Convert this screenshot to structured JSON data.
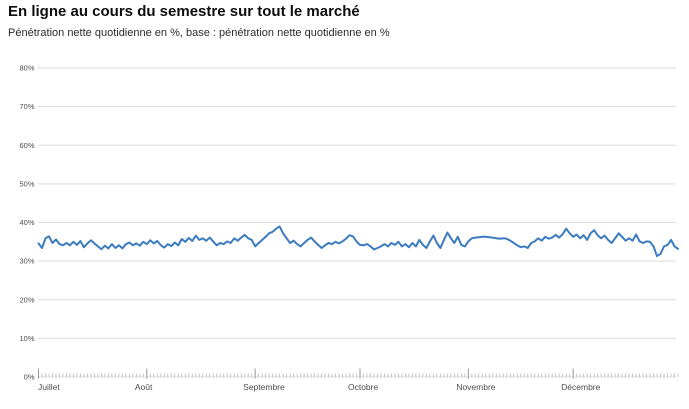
{
  "header": {
    "title": "En ligne au cours du semestre sur tout le marché",
    "subtitle": "Pénétration nette quotidienne en %, base : pénétration nette quotidienne en %"
  },
  "colors": {
    "background": "#ffffff",
    "line": "#3b7bbf",
    "grid": "#dddddd",
    "day_tick": "#b8b8b8",
    "month_tick": "#999999",
    "axis_text": "#4d4d4d",
    "title_text": "#0d0d0d",
    "subtitle_text": "#2b2b2b"
  },
  "chart_data": {
    "type": "line",
    "title": "En ligne au cours du semestre sur tout le marché",
    "subtitle": "Pénétration nette quotidienne en %, base : pénétration nette quotidienne en %",
    "grid": true,
    "legend_position": "none",
    "ylim": [
      0,
      80
    ],
    "yticks": [
      0,
      10,
      20,
      30,
      40,
      50,
      60,
      70,
      80
    ],
    "ytick_suffix": "%",
    "x_months": [
      "Juillet",
      "Août",
      "Septembre",
      "Octobre",
      "Novembre",
      "Décembre"
    ],
    "x_month_day_offsets": [
      0,
      31,
      62,
      92,
      123,
      153
    ],
    "x_total_days": 184,
    "series": [
      {
        "name": "Pénétration nette quotidienne en %",
        "color": "#3b7bbf",
        "values": [
          34.6,
          33.4,
          35.9,
          36.4,
          34.7,
          35.6,
          34.4,
          34.1,
          34.7,
          34.1,
          35.0,
          34.2,
          35.2,
          33.6,
          34.6,
          35.4,
          34.6,
          33.8,
          33.1,
          34.0,
          33.3,
          34.4,
          33.4,
          34.1,
          33.3,
          34.4,
          34.8,
          34.1,
          34.6,
          34.0,
          35.0,
          34.4,
          35.4,
          34.6,
          35.2,
          34.1,
          33.5,
          34.4,
          33.9,
          34.8,
          34.1,
          35.7,
          35.0,
          36.0,
          35.2,
          36.6,
          35.5,
          35.9,
          35.3,
          36.1,
          35.1,
          34.1,
          34.7,
          34.4,
          35.1,
          34.7,
          35.9,
          35.3,
          36.1,
          36.8,
          35.9,
          35.5,
          33.8,
          34.7,
          35.5,
          36.3,
          37.2,
          37.6,
          38.4,
          39.0,
          37.2,
          35.9,
          34.7,
          35.3,
          34.4,
          33.8,
          34.7,
          35.5,
          36.1,
          35.1,
          34.2,
          33.4,
          34.1,
          34.7,
          34.4,
          35.0,
          34.6,
          35.1,
          35.8,
          36.7,
          36.4,
          35.1,
          34.2,
          34.1,
          34.4,
          33.8,
          33.0,
          33.4,
          33.8,
          34.4,
          33.8,
          34.7,
          34.2,
          35.0,
          33.8,
          34.4,
          33.6,
          34.7,
          33.8,
          35.5,
          34.2,
          33.4,
          35.1,
          36.6,
          34.7,
          33.4,
          35.5,
          37.4,
          35.9,
          34.7,
          36.3,
          34.2,
          33.8,
          35.1,
          35.9,
          36.1,
          36.2,
          36.3,
          36.3,
          36.2,
          36.1,
          35.9,
          35.8,
          35.9,
          35.8,
          35.3,
          34.7,
          34.1,
          33.6,
          33.8,
          33.4,
          34.7,
          35.1,
          35.9,
          35.3,
          36.3,
          35.8,
          36.1,
          36.8,
          36.1,
          37.0,
          38.4,
          37.2,
          36.3,
          36.9,
          35.9,
          36.7,
          35.5,
          37.2,
          38.0,
          36.7,
          35.9,
          36.6,
          35.5,
          34.7,
          35.9,
          37.2,
          36.3,
          35.3,
          35.9,
          35.3,
          36.9,
          35.1,
          34.7,
          35.1,
          35.0,
          33.8,
          31.3,
          31.9,
          33.8,
          34.2,
          35.5,
          33.8,
          33.2
        ]
      }
    ]
  }
}
